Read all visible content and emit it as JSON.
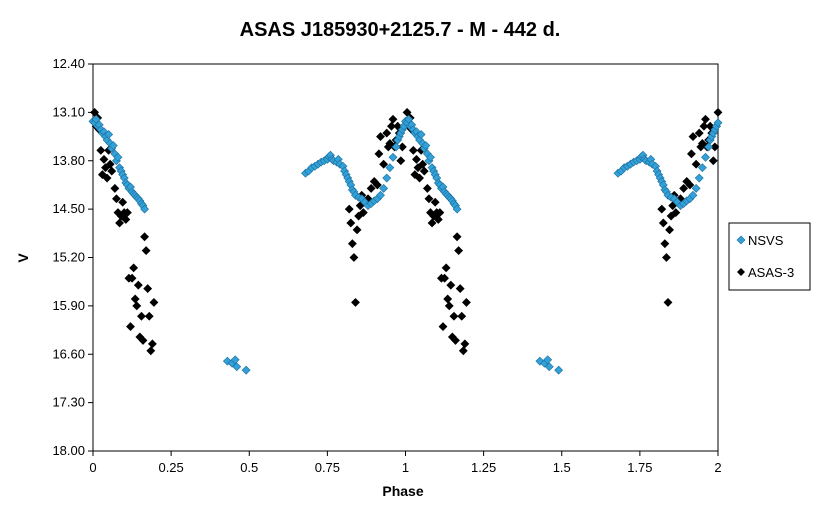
{
  "chart_data": {
    "type": "scatter",
    "title": "ASAS J185930+2125.7  - M - 442 d.",
    "xlabel": "Phase",
    "ylabel": "V",
    "xlim": [
      0,
      2
    ],
    "ylim": [
      18.0,
      12.4
    ],
    "y_inverted": true,
    "xticks": [
      "0",
      "0.25",
      "0.5",
      "0.75",
      "1",
      "1.25",
      "1.5",
      "1.75",
      "2"
    ],
    "yticks": [
      "12.40",
      "13.10",
      "13.80",
      "14.50",
      "15.20",
      "15.90",
      "16.60",
      "17.30",
      "18.00"
    ],
    "grid": false,
    "legend_position": "right",
    "series": [
      {
        "name": "NSVS",
        "color": "#33a0d8",
        "marker": "diamond",
        "points": [
          [
            0.0,
            13.23
          ],
          [
            0.005,
            13.25
          ],
          [
            0.01,
            13.2
          ],
          [
            0.015,
            13.3
          ],
          [
            0.02,
            13.28
          ],
          [
            0.025,
            13.35
          ],
          [
            0.03,
            13.4
          ],
          [
            0.035,
            13.38
          ],
          [
            0.04,
            13.45
          ],
          [
            0.045,
            13.5
          ],
          [
            0.05,
            13.42
          ],
          [
            0.055,
            13.55
          ],
          [
            0.06,
            13.62
          ],
          [
            0.065,
            13.58
          ],
          [
            0.07,
            13.7
          ],
          [
            0.075,
            13.8
          ],
          [
            0.08,
            13.75
          ],
          [
            0.085,
            13.9
          ],
          [
            0.09,
            13.95
          ],
          [
            0.095,
            14.0
          ],
          [
            0.1,
            14.05
          ],
          [
            0.105,
            14.12
          ],
          [
            0.11,
            14.15
          ],
          [
            0.115,
            14.2
          ],
          [
            0.12,
            14.18
          ],
          [
            0.125,
            14.25
          ],
          [
            0.13,
            14.28
          ],
          [
            0.135,
            14.3
          ],
          [
            0.14,
            14.33
          ],
          [
            0.145,
            14.35
          ],
          [
            0.15,
            14.38
          ],
          [
            0.155,
            14.42
          ],
          [
            0.16,
            14.45
          ],
          [
            0.165,
            14.5
          ],
          [
            0.43,
            16.7
          ],
          [
            0.445,
            16.73
          ],
          [
            0.455,
            16.68
          ],
          [
            0.46,
            16.78
          ],
          [
            0.49,
            16.83
          ],
          [
            0.68,
            13.98
          ],
          [
            0.69,
            13.95
          ],
          [
            0.7,
            13.9
          ],
          [
            0.71,
            13.88
          ],
          [
            0.72,
            13.85
          ],
          [
            0.73,
            13.82
          ],
          [
            0.74,
            13.8
          ],
          [
            0.75,
            13.78
          ],
          [
            0.755,
            13.74
          ],
          [
            0.76,
            13.72
          ],
          [
            0.765,
            13.78
          ],
          [
            0.77,
            13.8
          ],
          [
            0.78,
            13.82
          ],
          [
            0.785,
            13.78
          ],
          [
            0.79,
            13.85
          ],
          [
            0.8,
            13.88
          ],
          [
            0.805,
            13.95
          ],
          [
            0.81,
            14.0
          ],
          [
            0.815,
            14.05
          ],
          [
            0.82,
            14.1
          ],
          [
            0.825,
            14.15
          ],
          [
            0.83,
            14.22
          ],
          [
            0.835,
            14.25
          ],
          [
            0.84,
            14.3
          ],
          [
            0.85,
            14.33
          ],
          [
            0.86,
            14.35
          ],
          [
            0.87,
            14.4
          ],
          [
            0.88,
            14.45
          ],
          [
            0.89,
            14.42
          ],
          [
            0.9,
            14.38
          ],
          [
            0.91,
            14.35
          ],
          [
            0.92,
            14.3
          ],
          [
            0.93,
            14.2
          ],
          [
            0.94,
            14.05
          ],
          [
            0.95,
            13.9
          ],
          [
            0.96,
            13.75
          ],
          [
            0.97,
            13.6
          ],
          [
            0.975,
            13.5
          ],
          [
            0.98,
            13.45
          ],
          [
            0.985,
            13.4
          ],
          [
            0.99,
            13.35
          ],
          [
            0.995,
            13.3
          ],
          [
            1.0,
            13.23
          ],
          [
            1.005,
            13.25
          ],
          [
            1.01,
            13.2
          ],
          [
            1.015,
            13.3
          ],
          [
            1.02,
            13.28
          ],
          [
            1.025,
            13.35
          ],
          [
            1.03,
            13.4
          ],
          [
            1.035,
            13.38
          ],
          [
            1.04,
            13.45
          ],
          [
            1.045,
            13.5
          ],
          [
            1.05,
            13.42
          ],
          [
            1.055,
            13.55
          ],
          [
            1.06,
            13.62
          ],
          [
            1.065,
            13.58
          ],
          [
            1.07,
            13.7
          ],
          [
            1.075,
            13.8
          ],
          [
            1.08,
            13.75
          ],
          [
            1.085,
            13.9
          ],
          [
            1.09,
            13.95
          ],
          [
            1.095,
            14.0
          ],
          [
            1.1,
            14.05
          ],
          [
            1.105,
            14.12
          ],
          [
            1.11,
            14.15
          ],
          [
            1.115,
            14.2
          ],
          [
            1.12,
            14.18
          ],
          [
            1.125,
            14.25
          ],
          [
            1.13,
            14.28
          ],
          [
            1.135,
            14.3
          ],
          [
            1.14,
            14.33
          ],
          [
            1.145,
            14.35
          ],
          [
            1.15,
            14.38
          ],
          [
            1.155,
            14.42
          ],
          [
            1.16,
            14.45
          ],
          [
            1.165,
            14.5
          ],
          [
            1.43,
            16.7
          ],
          [
            1.445,
            16.73
          ],
          [
            1.455,
            16.68
          ],
          [
            1.46,
            16.78
          ],
          [
            1.49,
            16.83
          ],
          [
            1.68,
            13.98
          ],
          [
            1.69,
            13.95
          ],
          [
            1.7,
            13.9
          ],
          [
            1.71,
            13.88
          ],
          [
            1.72,
            13.85
          ],
          [
            1.73,
            13.82
          ],
          [
            1.74,
            13.8
          ],
          [
            1.75,
            13.78
          ],
          [
            1.755,
            13.74
          ],
          [
            1.76,
            13.72
          ],
          [
            1.765,
            13.78
          ],
          [
            1.77,
            13.8
          ],
          [
            1.78,
            13.82
          ],
          [
            1.785,
            13.78
          ],
          [
            1.79,
            13.85
          ],
          [
            1.8,
            13.88
          ],
          [
            1.805,
            13.95
          ],
          [
            1.81,
            14.0
          ],
          [
            1.815,
            14.05
          ],
          [
            1.82,
            14.1
          ],
          [
            1.825,
            14.15
          ],
          [
            1.83,
            14.22
          ],
          [
            1.835,
            14.25
          ],
          [
            1.84,
            14.3
          ],
          [
            1.85,
            14.33
          ],
          [
            1.86,
            14.35
          ],
          [
            1.87,
            14.4
          ],
          [
            1.88,
            14.45
          ],
          [
            1.89,
            14.42
          ],
          [
            1.9,
            14.38
          ],
          [
            1.91,
            14.35
          ],
          [
            1.92,
            14.3
          ],
          [
            1.93,
            14.2
          ],
          [
            1.94,
            14.05
          ],
          [
            1.95,
            13.9
          ],
          [
            1.96,
            13.75
          ],
          [
            1.97,
            13.6
          ],
          [
            1.975,
            13.5
          ],
          [
            1.98,
            13.45
          ],
          [
            1.985,
            13.4
          ],
          [
            1.99,
            13.35
          ],
          [
            1.995,
            13.3
          ],
          [
            2.0,
            13.25
          ]
        ]
      },
      {
        "name": "ASAS-3",
        "color": "#000000",
        "marker": "diamond",
        "points": [
          [
            0.005,
            13.1
          ],
          [
            0.01,
            13.3
          ],
          [
            0.015,
            13.18
          ],
          [
            0.02,
            13.35
          ],
          [
            0.025,
            13.65
          ],
          [
            0.03,
            14.0
          ],
          [
            0.035,
            13.78
          ],
          [
            0.04,
            13.9
          ],
          [
            0.045,
            14.05
          ],
          [
            0.05,
            13.65
          ],
          [
            0.055,
            13.85
          ],
          [
            0.06,
            13.95
          ],
          [
            0.07,
            14.2
          ],
          [
            0.075,
            14.35
          ],
          [
            0.08,
            14.55
          ],
          [
            0.085,
            14.7
          ],
          [
            0.09,
            14.6
          ],
          [
            0.095,
            14.4
          ],
          [
            0.1,
            14.55
          ],
          [
            0.105,
            14.65
          ],
          [
            0.11,
            14.55
          ],
          [
            0.115,
            15.5
          ],
          [
            0.12,
            16.2
          ],
          [
            0.125,
            15.5
          ],
          [
            0.13,
            15.35
          ],
          [
            0.135,
            15.8
          ],
          [
            0.14,
            15.9
          ],
          [
            0.145,
            15.6
          ],
          [
            0.15,
            16.35
          ],
          [
            0.155,
            16.05
          ],
          [
            0.16,
            16.4
          ],
          [
            0.165,
            14.9
          ],
          [
            0.17,
            15.1
          ],
          [
            0.175,
            15.65
          ],
          [
            0.18,
            16.05
          ],
          [
            0.185,
            16.55
          ],
          [
            0.19,
            16.45
          ],
          [
            0.195,
            15.85
          ],
          [
            0.82,
            14.5
          ],
          [
            0.825,
            14.7
          ],
          [
            0.83,
            15.0
          ],
          [
            0.835,
            15.2
          ],
          [
            0.84,
            15.85
          ],
          [
            0.845,
            14.8
          ],
          [
            0.85,
            14.6
          ],
          [
            0.855,
            14.45
          ],
          [
            0.86,
            14.3
          ],
          [
            0.865,
            14.55
          ],
          [
            0.87,
            14.4
          ],
          [
            0.88,
            14.35
          ],
          [
            0.89,
            14.2
          ],
          [
            0.9,
            14.1
          ],
          [
            0.91,
            14.15
          ],
          [
            0.915,
            13.7
          ],
          [
            0.92,
            13.45
          ],
          [
            0.93,
            13.85
          ],
          [
            0.94,
            13.4
          ],
          [
            0.945,
            13.6
          ],
          [
            0.95,
            13.55
          ],
          [
            0.955,
            13.3
          ],
          [
            0.96,
            13.2
          ],
          [
            0.965,
            13.6
          ],
          [
            0.97,
            13.5
          ],
          [
            0.975,
            13.3
          ],
          [
            0.98,
            13.4
          ],
          [
            0.985,
            13.8
          ],
          [
            0.99,
            13.6
          ],
          [
            0.995,
            13.3
          ],
          [
            1.005,
            13.1
          ],
          [
            1.01,
            13.3
          ],
          [
            1.015,
            13.18
          ],
          [
            1.02,
            13.35
          ],
          [
            1.025,
            13.65
          ],
          [
            1.03,
            14.0
          ],
          [
            1.035,
            13.78
          ],
          [
            1.04,
            13.9
          ],
          [
            1.045,
            14.05
          ],
          [
            1.05,
            13.65
          ],
          [
            1.055,
            13.85
          ],
          [
            1.06,
            13.95
          ],
          [
            1.07,
            14.2
          ],
          [
            1.075,
            14.35
          ],
          [
            1.08,
            14.55
          ],
          [
            1.085,
            14.7
          ],
          [
            1.09,
            14.6
          ],
          [
            1.095,
            14.4
          ],
          [
            1.1,
            14.55
          ],
          [
            1.105,
            14.65
          ],
          [
            1.11,
            14.55
          ],
          [
            1.115,
            15.5
          ],
          [
            1.12,
            16.2
          ],
          [
            1.125,
            15.5
          ],
          [
            1.13,
            15.35
          ],
          [
            1.135,
            15.8
          ],
          [
            1.14,
            15.9
          ],
          [
            1.145,
            15.6
          ],
          [
            1.15,
            16.35
          ],
          [
            1.155,
            16.05
          ],
          [
            1.16,
            16.4
          ],
          [
            1.165,
            14.9
          ],
          [
            1.17,
            15.1
          ],
          [
            1.175,
            15.65
          ],
          [
            1.18,
            16.05
          ],
          [
            1.185,
            16.55
          ],
          [
            1.19,
            16.45
          ],
          [
            1.195,
            15.85
          ],
          [
            1.82,
            14.5
          ],
          [
            1.825,
            14.7
          ],
          [
            1.83,
            15.0
          ],
          [
            1.835,
            15.2
          ],
          [
            1.84,
            15.85
          ],
          [
            1.845,
            14.8
          ],
          [
            1.85,
            14.6
          ],
          [
            1.855,
            14.45
          ],
          [
            1.86,
            14.3
          ],
          [
            1.865,
            14.55
          ],
          [
            1.87,
            14.4
          ],
          [
            1.88,
            14.35
          ],
          [
            1.89,
            14.2
          ],
          [
            1.9,
            14.1
          ],
          [
            1.91,
            14.15
          ],
          [
            1.915,
            13.7
          ],
          [
            1.92,
            13.45
          ],
          [
            1.93,
            13.85
          ],
          [
            1.94,
            13.4
          ],
          [
            1.945,
            13.6
          ],
          [
            1.95,
            13.55
          ],
          [
            1.955,
            13.3
          ],
          [
            1.96,
            13.2
          ],
          [
            1.965,
            13.6
          ],
          [
            1.97,
            13.5
          ],
          [
            1.975,
            13.3
          ],
          [
            1.98,
            13.4
          ],
          [
            1.985,
            13.8
          ],
          [
            1.99,
            13.6
          ],
          [
            1.995,
            13.3
          ],
          [
            2.0,
            13.1
          ]
        ]
      }
    ]
  }
}
